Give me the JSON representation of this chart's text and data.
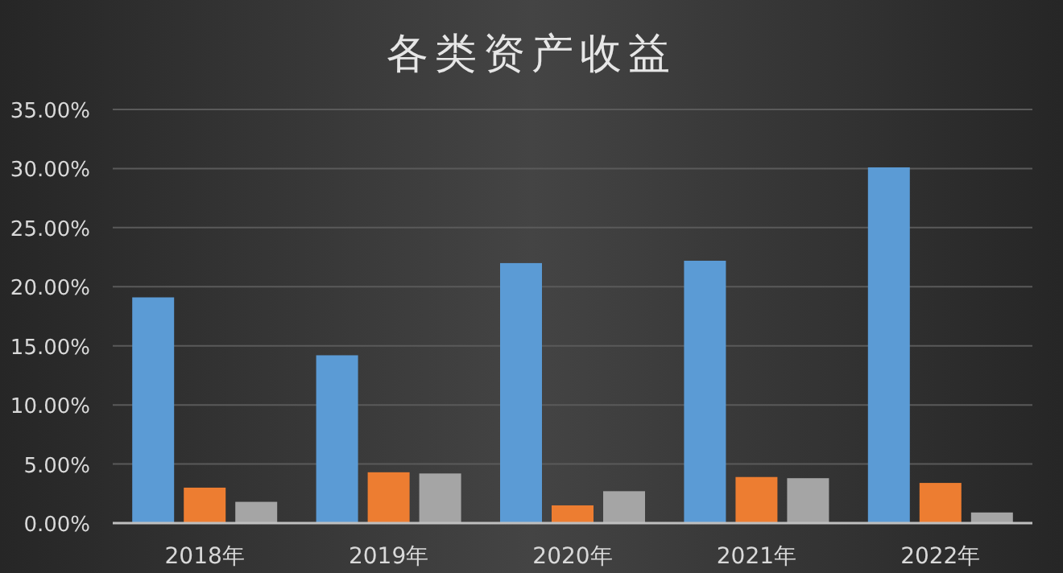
{
  "chart_data": {
    "type": "bar",
    "title": "各类资产收益",
    "categories": [
      "2018年",
      "2019年",
      "2020年",
      "2021年",
      "2022年"
    ],
    "series": [
      {
        "color": "#5b9bd5",
        "values": [
          19.1,
          14.2,
          22.0,
          22.2,
          30.1
        ]
      },
      {
        "color": "#ed7d31",
        "values": [
          3.0,
          4.3,
          1.5,
          3.9,
          3.4
        ]
      },
      {
        "color": "#a5a5a5",
        "values": [
          1.8,
          4.2,
          2.7,
          3.8,
          0.9
        ]
      }
    ],
    "ylim": [
      0,
      35
    ],
    "yticks": [
      {
        "value": 0,
        "label": "0.00%"
      },
      {
        "value": 5,
        "label": "5.00%"
      },
      {
        "value": 10,
        "label": "10.00%"
      },
      {
        "value": 15,
        "label": "15.00%"
      },
      {
        "value": 20,
        "label": "20.00%"
      },
      {
        "value": 25,
        "label": "25.00%"
      },
      {
        "value": 30,
        "label": "30.00%"
      },
      {
        "value": 35,
        "label": "35.00%"
      }
    ],
    "grid": "y"
  }
}
